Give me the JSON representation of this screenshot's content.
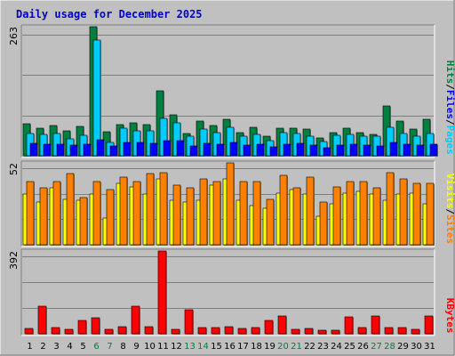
{
  "chart_data": {
    "type": "bar",
    "title": "Daily usage for December 2025",
    "days": [
      "1",
      "2",
      "3",
      "4",
      "5",
      "6",
      "7",
      "8",
      "9",
      "10",
      "11",
      "12",
      "13",
      "14",
      "15",
      "16",
      "17",
      "18",
      "19",
      "20",
      "21",
      "22",
      "23",
      "24",
      "25",
      "26",
      "27",
      "28",
      "29",
      "30",
      "31"
    ],
    "weekend_days": [
      6,
      7,
      13,
      14,
      20,
      21,
      27,
      28
    ],
    "grid": true,
    "panels": [
      {
        "id": "top",
        "ymax_label": "263",
        "ylim": [
          0,
          263
        ],
        "legend": [
          {
            "name": "Pages",
            "color": "#00ccff"
          },
          {
            "name": "Files",
            "color": "#0000ff"
          },
          {
            "name": "Hits",
            "color": "#008040"
          }
        ],
        "series": [
          {
            "name": "Hits",
            "color": "#008040",
            "values": [
              66,
              56,
              62,
              50,
              59,
              263,
              49,
              64,
              67,
              63,
              133,
              84,
              45,
              71,
              61,
              75,
              48,
              58,
              40,
              56,
              57,
              55,
              37,
              48,
              56,
              48,
              44,
              102,
              70,
              55,
              74
            ]
          },
          {
            "name": "Files",
            "color": "#00ccff",
            "values": [
              46,
              44,
              46,
              34,
              41,
              235,
              28,
              57,
              50,
              50,
              76,
              68,
              39,
              54,
              47,
              58,
              40,
              44,
              30,
              48,
              46,
              40,
              29,
              42,
              44,
              40,
              40,
              58,
              45,
              40,
              45
            ]
          },
          {
            "name": "Pages",
            "color": "#0000ff",
            "values": [
              26,
              24,
              24,
              21,
              24,
              32,
              20,
              27,
              28,
              26,
              30,
              30,
              20,
              26,
              24,
              27,
              21,
              24,
              18,
              24,
              25,
              22,
              17,
              22,
              24,
              22,
              20,
              28,
              24,
              22,
              24
            ]
          }
        ]
      },
      {
        "id": "mid",
        "ymax_label": "52",
        "ylim": [
          0,
          52
        ],
        "legend": [
          {
            "name": "Sites",
            "color": "#ff8000"
          },
          {
            "name": "Visits",
            "color": "#ffff00"
          }
        ],
        "series": [
          {
            "name": "Visits",
            "color": "#ffff00",
            "values": [
              32,
              27,
              36,
              29,
              28,
              32,
              17,
              39,
              37,
              32,
              42,
              28,
              27,
              28,
              38,
              42,
              28,
              25,
              23,
              33,
              35,
              32,
              18,
              26,
              33,
              34,
              32,
              28,
              32,
              33,
              26
            ]
          },
          {
            "name": "Sites",
            "color": "#ff8000",
            "values": [
              40,
              36,
              40,
              45,
              30,
              40,
              35,
              43,
              40,
              45,
              46,
              38,
              36,
              42,
              40,
              52,
              40,
              40,
              29,
              44,
              36,
              43,
              27,
              37,
              40,
              40,
              36,
              46,
              42,
              39,
              39
            ]
          }
        ]
      },
      {
        "id": "bot",
        "ymax_label": "392",
        "ylim": [
          0,
          392
        ],
        "legend": [
          {
            "name": "KBytes",
            "color": "#ff0000"
          }
        ],
        "series": [
          {
            "name": "KBytes",
            "color": "#ff0000",
            "values": [
              25,
              130,
              30,
              22,
              65,
              75,
              20,
              35,
              130,
              35,
              392,
              20,
              115,
              30,
              28,
              35,
              25,
              28,
              65,
              85,
              22,
              25,
              18,
              18,
              80,
              28,
              85,
              28,
              30,
              22,
              85
            ]
          }
        ]
      }
    ]
  },
  "colors": {
    "background": "#c0c0c0",
    "grid": "#808080",
    "weekday_label": "#000000",
    "weekend_label": "#008040"
  }
}
